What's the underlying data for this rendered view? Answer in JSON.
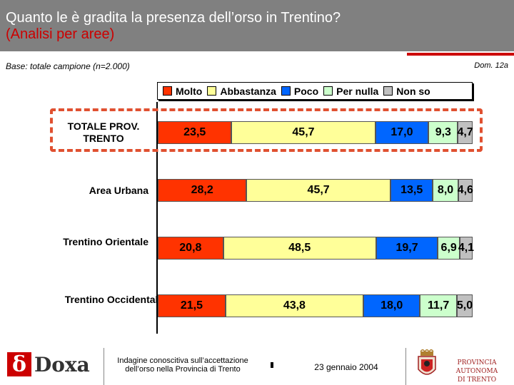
{
  "header": {
    "title": "Quanto le è gradita la presenza dell’orso in Trentino?",
    "subtitle": "(Analisi per aree)"
  },
  "base_text": "Base: totale campione (n=2.000)",
  "doc_ref": "Dom. 12a",
  "colors": {
    "header_bg": "#808080",
    "accent_red": "#cc0000",
    "highlight_border": "#e05030"
  },
  "chart_data": {
    "type": "bar",
    "orientation": "horizontal",
    "stacked": true,
    "normalized": true,
    "legend_position": "top",
    "categories": [
      "TOTALE PROV. TRENTO",
      "Area Urbana",
      "Trentino Orientale",
      "Trentino Occidentale"
    ],
    "series": [
      {
        "name": "Molto",
        "color": "#ff3300",
        "values": [
          23.5,
          28.2,
          20.8,
          21.5
        ],
        "labels": [
          "23,5",
          "28,2",
          "20,8",
          "21,5"
        ]
      },
      {
        "name": "Abbastanza",
        "color": "#ffff99",
        "values": [
          45.7,
          45.7,
          48.5,
          43.8
        ],
        "labels": [
          "45,7",
          "45,7",
          "48,5",
          "43,8"
        ]
      },
      {
        "name": "Poco",
        "color": "#0066ff",
        "values": [
          17.0,
          13.5,
          19.7,
          18.0
        ],
        "labels": [
          "17,0",
          "13,5",
          "19,7",
          "18,0"
        ]
      },
      {
        "name": "Per nulla",
        "color": "#ccffcc",
        "values": [
          9.3,
          8.0,
          6.9,
          11.7
        ],
        "labels": [
          "9,3",
          "8,0",
          "6,9",
          "11,7"
        ]
      },
      {
        "name": "Non so",
        "color": "#c0c0c0",
        "values": [
          4.7,
          4.6,
          4.1,
          5.0
        ],
        "labels": [
          "4,7",
          "4,6",
          "4,1",
          "5,0"
        ]
      }
    ],
    "highlighted_category": "TOTALE PROV. TRENTO"
  },
  "footer": {
    "logo_mark": "δ",
    "logo_text": "Doxa",
    "survey_line1": "Indagine conoscitiva sull’accettazione",
    "survey_line2": "dell’orso nella Provincia di Trento",
    "date": "23 gennaio 2004",
    "pat_line1": "PROVINCIA AUTONOMA",
    "pat_line2": "DI TRENTO",
    "crest_icon": "coat-of-arms-icon"
  }
}
